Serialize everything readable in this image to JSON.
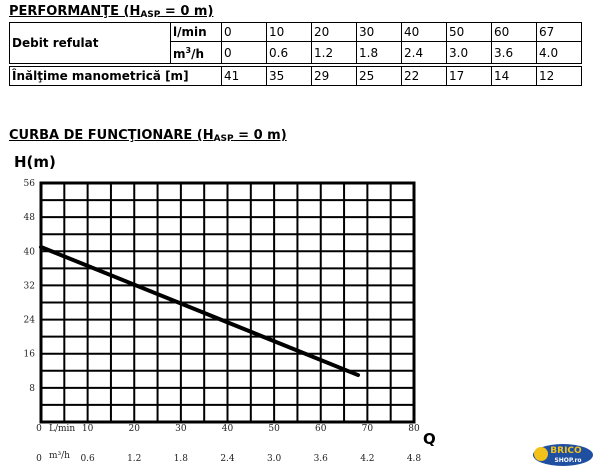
{
  "performance": {
    "heading_main": "PERFORMANŢE (H",
    "heading_sub": "ASP",
    "heading_tail": " = 0 m)",
    "rows": [
      {
        "label": "Debit refulat",
        "unit": "l/min",
        "values": [
          "0",
          "10",
          "20",
          "30",
          "40",
          "50",
          "60",
          "67"
        ]
      },
      {
        "label": "",
        "unit_main": "m",
        "unit_sup": "3",
        "unit_tail": "/h",
        "values": [
          "0",
          "0.6",
          "1.2",
          "1.8",
          "2.4",
          "3.0",
          "3.6",
          "4.0"
        ]
      },
      {
        "label": "Înălţime manometrică [m]",
        "values": [
          "41",
          "35",
          "29",
          "25",
          "22",
          "17",
          "14",
          "12"
        ]
      }
    ]
  },
  "curve": {
    "heading_main": "CURBA DE FUNCŢIONARE (H",
    "heading_sub": "ASP",
    "heading_tail": " = 0 m)"
  },
  "chart_data": {
    "type": "line",
    "ylabel": "H(m)",
    "xlabel": "Q",
    "xlim": [
      0,
      80
    ],
    "ylim": [
      0,
      56
    ],
    "grid": true,
    "y_ticks": [
      8,
      16,
      24,
      32,
      40,
      48,
      56
    ],
    "x_ticks_lmin": [
      {
        "value": 0,
        "label": "0"
      },
      {
        "value": 10,
        "label": "10"
      },
      {
        "value": 20,
        "label": "20"
      },
      {
        "value": 30,
        "label": "30"
      },
      {
        "value": 40,
        "label": "40"
      },
      {
        "value": 50,
        "label": "50"
      },
      {
        "value": 60,
        "label": "60"
      },
      {
        "value": 70,
        "label": "70"
      },
      {
        "value": 80,
        "label": "80"
      }
    ],
    "x_unit_lmin": "L/min",
    "x_ticks_m3h": [
      {
        "value": 0,
        "label": "0"
      },
      {
        "value": 10,
        "label": "0.6"
      },
      {
        "value": 20,
        "label": "1.2"
      },
      {
        "value": 30,
        "label": "1.8"
      },
      {
        "value": 40,
        "label": "2.4"
      },
      {
        "value": 50,
        "label": "3.0"
      },
      {
        "value": 60,
        "label": "3.6"
      },
      {
        "value": 70,
        "label": "4.2"
      },
      {
        "value": 80,
        "label": "4.8"
      }
    ],
    "x_unit_m3h": "m³/h",
    "series": [
      {
        "x": [
          0,
          68
        ],
        "y": [
          41,
          11
        ]
      }
    ],
    "line_color": "#000000"
  },
  "logo": {
    "text_top": "BRICO",
    "text_bottom": "SHOP.ro",
    "color_yellow": "#f2c21a",
    "color_blue": "#1f4fa0"
  }
}
